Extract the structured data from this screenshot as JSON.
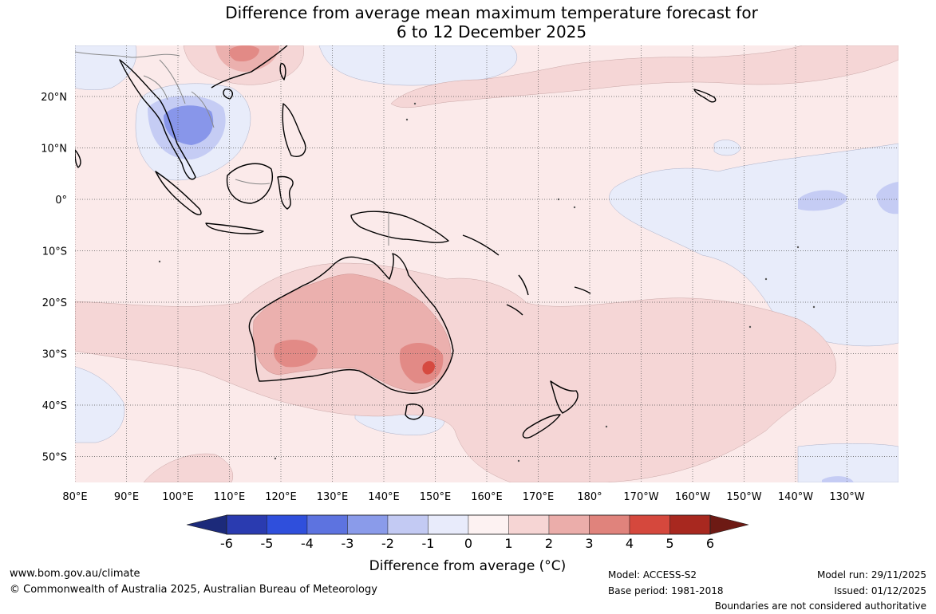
{
  "title": {
    "line1": "Difference from average mean maximum temperature forecast for",
    "line2": "6 to 12 December 2025"
  },
  "map": {
    "longitude_labels": [
      "80°E",
      "90°E",
      "100°E",
      "110°E",
      "120°E",
      "130°E",
      "140°E",
      "150°E",
      "160°E",
      "170°E",
      "180°",
      "170°W",
      "160°W",
      "150°W",
      "140°W",
      "130°W"
    ],
    "latitude_labels": [
      "20°N",
      "10°N",
      "0°",
      "10°S",
      "20°S",
      "30°S",
      "40°S",
      "50°S"
    ],
    "colors": {
      "neutral_warm": "#fbeaea",
      "neutral_cool": "#e8ecfa",
      "warm_1_2": "#f5d6d6",
      "warm_2_3": "#ebb0ae",
      "warm_3_4": "#e28a86",
      "warm_4_5": "#d64a40",
      "cool_1_2": "#c5ccf4",
      "cool_2_3": "#8896ea",
      "coast": "#000000",
      "border": "#888888",
      "grid": "#555555"
    }
  },
  "colorbar": {
    "tick_labels": [
      "-6",
      "-5",
      "-4",
      "-3",
      "-2",
      "-1",
      "0",
      "1",
      "2",
      "3",
      "4",
      "5",
      "6"
    ],
    "colors": [
      "#1c2a7a",
      "#2a3bb0",
      "#2f4fdc",
      "#5d73e0",
      "#8a9bea",
      "#c3caf3",
      "#e8ebfb",
      "#fdf2f2",
      "#f6d5d4",
      "#ebadaa",
      "#e0837c",
      "#d5483d",
      "#a8281f",
      "#6d1a14"
    ],
    "title": "Difference from average (°C)"
  },
  "footer": {
    "website": "www.bom.gov.au/climate",
    "copyright": "© Commonwealth of Australia 2025, Australian Bureau of Meteorology",
    "model": "Model: ACCESS-S2",
    "base_period": "Base period: 1981-2018",
    "model_run": "Model run: 29/11/2025",
    "issued": "Issued: 01/12/2025",
    "disclaimer": "Boundaries are not considered authoritative"
  }
}
